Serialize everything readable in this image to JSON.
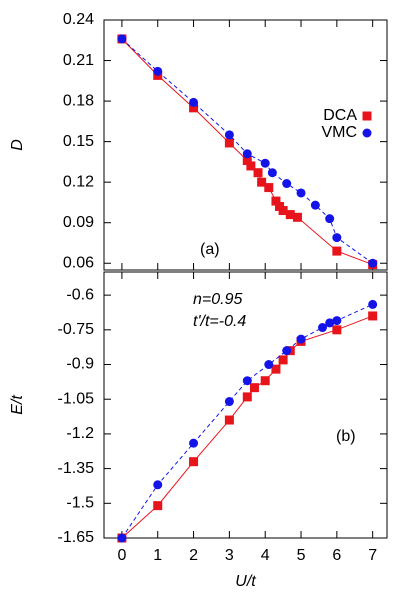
{
  "chart_data": [
    {
      "type": "line",
      "y_label": "D",
      "annotations": [
        "(a)"
      ],
      "xlim": [
        -0.5,
        7.4
      ],
      "xticks": [
        0,
        1,
        2,
        3,
        4,
        5,
        6,
        7
      ],
      "ylim": [
        0.055,
        0.24
      ],
      "yticks": [
        0.06,
        0.09,
        0.12,
        0.15,
        0.18,
        0.21,
        0.24
      ],
      "legend": "upper right",
      "series": [
        {
          "name": "DCA",
          "color": "#e8141c",
          "marker": "square",
          "line_style": "solid",
          "x": [
            0,
            1,
            2,
            3,
            3.5,
            3.6,
            3.8,
            3.9,
            4.1,
            4.3,
            4.4,
            4.5,
            4.7,
            4.9,
            6,
            7
          ],
          "values": [
            0.226,
            0.199,
            0.175,
            0.149,
            0.136,
            0.132,
            0.127,
            0.12,
            0.116,
            0.106,
            0.102,
            0.099,
            0.096,
            0.094,
            0.069,
            0.059
          ]
        },
        {
          "name": "VMC",
          "color": "#1414e8",
          "marker": "circle",
          "line_style": "dashed",
          "x": [
            0,
            1,
            2,
            3,
            3.5,
            4,
            4.2,
            4.6,
            5,
            5.4,
            5.8,
            6,
            7
          ],
          "values": [
            0.226,
            0.202,
            0.179,
            0.155,
            0.141,
            0.134,
            0.127,
            0.119,
            0.112,
            0.103,
            0.093,
            0.079,
            0.06
          ]
        }
      ]
    },
    {
      "type": "line",
      "y_label": "E/t",
      "x_label": "U/t",
      "annotations": [
        "n=0.95",
        "t'/t=-0.4",
        "(b)"
      ],
      "xlim": [
        -0.5,
        7.4
      ],
      "xticks": [
        0,
        1,
        2,
        3,
        4,
        5,
        6,
        7
      ],
      "ylim": [
        -1.65,
        -0.5
      ],
      "yticks": [
        -1.65,
        -1.5,
        -1.35,
        -1.2,
        -1.05,
        -0.9,
        -0.75,
        -0.6
      ],
      "series": [
        {
          "name": "DCA",
          "color": "#e8141c",
          "marker": "square",
          "line_style": "solid",
          "x": [
            0,
            1,
            2,
            3,
            3.5,
            3.7,
            4,
            4.3,
            4.5,
            4.7,
            5,
            6,
            7
          ],
          "values": [
            -1.65,
            -1.51,
            -1.32,
            -1.14,
            -1.04,
            -1.0,
            -0.97,
            -0.92,
            -0.88,
            -0.84,
            -0.8,
            -0.75,
            -0.69
          ]
        },
        {
          "name": "VMC",
          "color": "#1414e8",
          "marker": "circle",
          "line_style": "dashed",
          "x": [
            0,
            1,
            2,
            3,
            3.5,
            4.1,
            4.6,
            5,
            5.6,
            5.8,
            6,
            7
          ],
          "values": [
            -1.65,
            -1.42,
            -1.24,
            -1.06,
            -0.97,
            -0.9,
            -0.84,
            -0.79,
            -0.74,
            -0.72,
            -0.71,
            -0.64
          ]
        }
      ]
    }
  ]
}
